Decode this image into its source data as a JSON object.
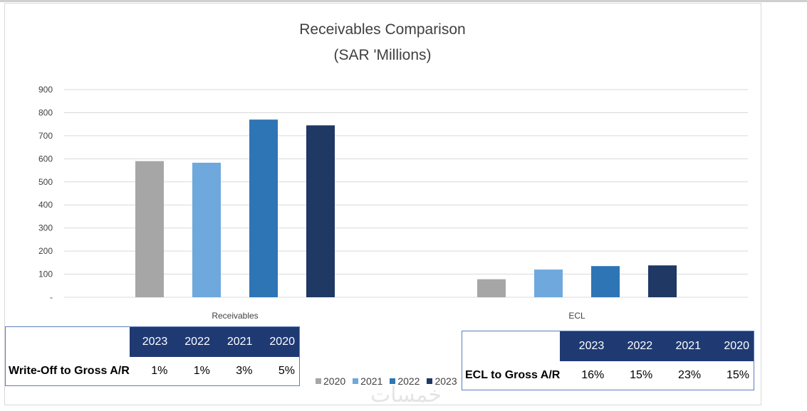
{
  "chart_data": {
    "type": "bar",
    "title": "Receivables Comparison",
    "subtitle": "(SAR 'Millions)",
    "categories": [
      "Receivables",
      "ECL"
    ],
    "series": [
      {
        "name": "2020",
        "color": "#a6a6a6",
        "values": [
          590,
          78
        ]
      },
      {
        "name": "2021",
        "color": "#6fa8dc",
        "values": [
          583,
          120
        ]
      },
      {
        "name": "2022",
        "color": "#2e75b6",
        "values": [
          770,
          135
        ]
      },
      {
        "name": "2023",
        "color": "#1f3864",
        "values": [
          745,
          138
        ]
      }
    ],
    "y_ticks": [
      "-",
      "100",
      "200",
      "300",
      "400",
      "500",
      "600",
      "700",
      "800",
      "900"
    ],
    "ylim": [
      0,
      900
    ],
    "legend_position": "bottom",
    "grid": true
  },
  "left_table": {
    "headers": [
      "2023",
      "2022",
      "2021",
      "2020"
    ],
    "row_label": "Write-Off to Gross A/R",
    "values": [
      "1%",
      "1%",
      "3%",
      "5%"
    ]
  },
  "right_table": {
    "headers": [
      "2023",
      "2022",
      "2021",
      "2020"
    ],
    "row_label": "ECL to Gross A/R",
    "values": [
      "16%",
      "15%",
      "23%",
      "15%"
    ]
  },
  "watermark": "خمسات"
}
